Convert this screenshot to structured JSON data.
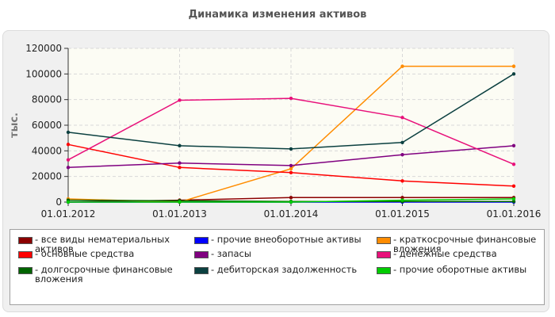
{
  "chart_data": {
    "type": "line",
    "title": "Динамика изменения активов",
    "ylabel": "тыс.",
    "xlabel": "",
    "categories": [
      "01.01.2012",
      "01.01.2013",
      "01.01.2014",
      "01.01.2015",
      "01.01.2016"
    ],
    "ylim": [
      0,
      120000
    ],
    "yticks": [
      0,
      20000,
      40000,
      60000,
      80000,
      100000,
      120000
    ],
    "grid": true,
    "legend_position": "bottom",
    "series": [
      {
        "name": "- все виды нематериальных активов",
        "color": "#8b0000",
        "values": [
          0,
          1500,
          3500,
          3500,
          3500
        ]
      },
      {
        "name": "- прочие внеоборотные активы",
        "color": "#0000ff",
        "values": [
          0,
          0,
          0,
          0,
          0
        ]
      },
      {
        "name": "- краткосрочные финансовые вложения",
        "color": "#ff8c00",
        "values": [
          2500,
          0,
          26000,
          106000,
          106000
        ]
      },
      {
        "name": "- основные средства",
        "color": "#ff0000",
        "values": [
          45000,
          27000,
          23000,
          16500,
          12500
        ]
      },
      {
        "name": "- запасы",
        "color": "#800080",
        "values": [
          27000,
          30500,
          28500,
          37000,
          44000
        ]
      },
      {
        "name": "- денежные средства",
        "color": "#e8107a",
        "values": [
          33000,
          79500,
          81000,
          66000,
          29500
        ]
      },
      {
        "name": "- долгосрочные финансовые вложения",
        "color": "#006400",
        "values": [
          1500,
          1000,
          500,
          500,
          500
        ]
      },
      {
        "name": "- дебиторская задолженность",
        "color": "#0b4040",
        "values": [
          54500,
          44000,
          41500,
          46500,
          100000
        ]
      },
      {
        "name": "- прочие оборотные активы",
        "color": "#00cc00",
        "values": [
          0,
          0,
          0,
          1500,
          2500
        ]
      }
    ]
  }
}
